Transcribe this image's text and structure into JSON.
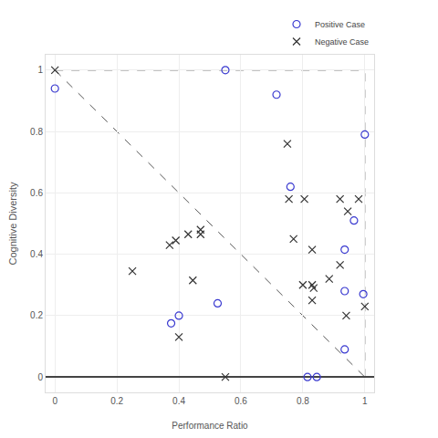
{
  "chart_data": {
    "type": "scatter",
    "x_label": "Performance Ratio",
    "y_label": "Cognitive Diversity",
    "xlim": [
      -0.03,
      1.03
    ],
    "ylim": [
      -0.05,
      1.05
    ],
    "xticks": [
      0,
      0.2,
      0.4,
      0.6,
      0.8,
      1
    ],
    "yticks": [
      0,
      0.2,
      0.4,
      0.6,
      0.8,
      1
    ],
    "grid": true,
    "legend": "top right",
    "series": [
      {
        "name": "Positive Case",
        "color": "#3a3ad0",
        "marker": "circle-open",
        "x": [
          0,
          0.55,
          0.715,
          1.0,
          0.76,
          0.965,
          0.935,
          0.935,
          0.995,
          0.525,
          0.4,
          0.375,
          0.935,
          0.815,
          0.845
        ],
        "values": [
          0.94,
          1.0,
          0.92,
          0.79,
          0.62,
          0.51,
          0.415,
          0.28,
          0.27,
          0.24,
          0.2,
          0.175,
          0.09,
          0.0,
          0.0
        ]
      },
      {
        "name": "Negative Case",
        "color": "#333333",
        "marker": "x-thin-open",
        "x": [
          0,
          0.25,
          0.37,
          0.39,
          0.43,
          0.47,
          0.47,
          0.445,
          0.4,
          0.55,
          0.75,
          0.755,
          0.805,
          0.77,
          0.83,
          0.8,
          0.83,
          0.835,
          0.83,
          0.885,
          0.92,
          0.92,
          0.945,
          0.98,
          0.94,
          1.0
        ],
        "values": [
          1.0,
          0.345,
          0.43,
          0.445,
          0.465,
          0.48,
          0.465,
          0.315,
          0.13,
          0.0,
          0.76,
          0.58,
          0.58,
          0.45,
          0.415,
          0.3,
          0.3,
          0.29,
          0.25,
          0.32,
          0.365,
          0.58,
          0.54,
          0.58,
          0.2,
          0.23
        ]
      }
    ]
  }
}
